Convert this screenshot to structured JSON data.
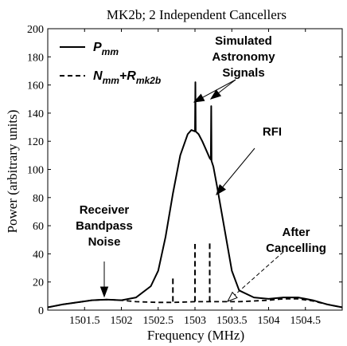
{
  "chart_data": {
    "type": "line",
    "title": "MK2b; 2 Independent Cancellers",
    "xlabel": "Frequency (MHz)",
    "ylabel": "Power (arbitrary units)",
    "xlim": [
      1501.0,
      1505.0
    ],
    "ylim": [
      0,
      200
    ],
    "x_ticks": [
      1501.5,
      1502,
      1502.5,
      1503,
      1503.5,
      1504,
      1504.5
    ],
    "x_tick_labels": [
      "1501.5",
      "1502",
      "1502.5",
      "1503",
      "1503.5",
      "1504",
      "1504.5"
    ],
    "y_ticks": [
      0,
      20,
      40,
      60,
      80,
      100,
      120,
      140,
      160,
      180,
      200
    ],
    "y_tick_labels": [
      "0",
      "20",
      "40",
      "60",
      "80",
      "100",
      "120",
      "140",
      "160",
      "180",
      "200"
    ],
    "grid": false,
    "legend": {
      "placement": "top-left",
      "entries": [
        {
          "label_main": "P",
          "label_sub": "mm",
          "style": "solid"
        },
        {
          "label_main": "N",
          "label_sub": "mm",
          "label_plus": "+R",
          "label_sub2": "mk2b",
          "style": "dashed"
        }
      ]
    },
    "series": [
      {
        "style": "solid",
        "x": [
          1501.0,
          1501.2,
          1501.4,
          1501.6,
          1501.8,
          1502.0,
          1502.2,
          1502.4,
          1502.5,
          1502.6,
          1502.7,
          1502.8,
          1502.9,
          1502.95,
          1503.0,
          1503.005,
          1503.01,
          1503.05,
          1503.1,
          1503.15,
          1503.2,
          1503.215,
          1503.22,
          1503.225,
          1503.25,
          1503.3,
          1503.4,
          1503.5,
          1503.6,
          1503.8,
          1504.0,
          1504.2,
          1504.4,
          1504.6,
          1504.8,
          1505.0
        ],
        "y": [
          2,
          4,
          5.5,
          7,
          7.5,
          7,
          9,
          17,
          28,
          52,
          83,
          110,
          125,
          128,
          127,
          162,
          127,
          125,
          120,
          114,
          108,
          107,
          145,
          106,
          102,
          88,
          58,
          28,
          14,
          9,
          8,
          9,
          9,
          7,
          4,
          2
        ]
      },
      {
        "style": "dashed",
        "x": [
          1501.0,
          1501.2,
          1501.4,
          1501.6,
          1501.8,
          1502.0,
          1502.2,
          1502.5,
          1502.7,
          1503.0,
          1503.2,
          1503.4,
          1503.6,
          1503.8,
          1504.0,
          1504.2,
          1504.4,
          1504.6,
          1504.8,
          1505.0
        ],
        "y": [
          2,
          4,
          5.5,
          7,
          7.5,
          7,
          6,
          5.5,
          5.5,
          6,
          6,
          6,
          6,
          6.5,
          7,
          8,
          8,
          6.5,
          4,
          2
        ]
      }
    ],
    "dashed_spikes": [
      {
        "x": 1502.7,
        "y_top": 23
      },
      {
        "x": 1503.0,
        "y_top": 47
      },
      {
        "x": 1503.2,
        "y_top": 48
      }
    ],
    "annotations": [
      {
        "lines": [
          "Simulated",
          "Astronomy",
          "Signals"
        ]
      },
      {
        "lines": [
          "RFI"
        ]
      },
      {
        "lines": [
          "Receiver",
          "Bandpass",
          "Noise"
        ]
      },
      {
        "lines": [
          "After",
          "Cancelling"
        ]
      }
    ]
  }
}
